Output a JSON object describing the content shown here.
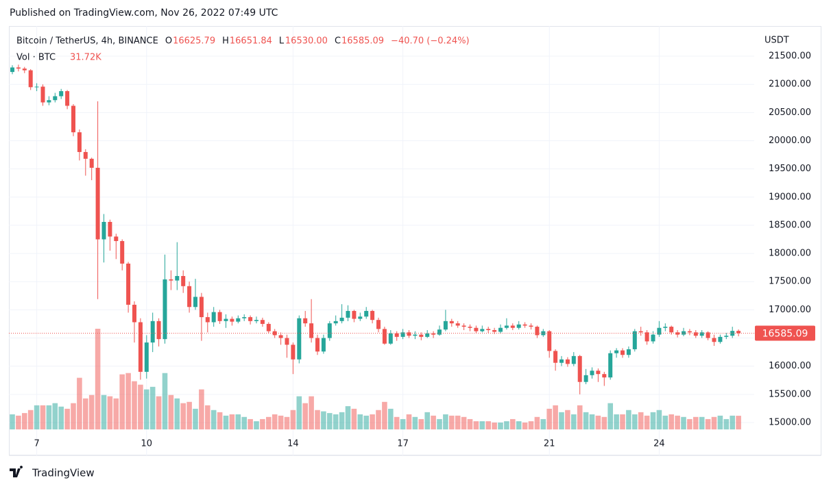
{
  "published": "Published on TradingView.com, Nov 26, 2022 07:49 UTC",
  "footer": "TradingView",
  "chart_data": {
    "type": "candlestick",
    "title": "Bitcoin / TetherUS, 4h, BINANCE",
    "ohlc_legend": [
      {
        "key": "O",
        "text": "16625.79"
      },
      {
        "key": "H",
        "text": "16651.84"
      },
      {
        "key": "L",
        "text": "16530.00"
      },
      {
        "key": "C",
        "text": "16585.09"
      }
    ],
    "change": "−40.70 (−0.24%)",
    "volume_legend": {
      "name": "Vol · BTC",
      "text": "31.72K"
    },
    "y_axis_label": "USDT",
    "up_color": "#26a69a",
    "down_color": "#ef5350",
    "grid": true,
    "categories": [
      null,
      null,
      null,
      null,
      "7",
      null,
      null,
      null,
      null,
      null,
      null,
      null,
      null,
      null,
      null,
      null,
      null,
      null,
      null,
      null,
      null,
      null,
      "10",
      null,
      null,
      null,
      null,
      null,
      null,
      null,
      null,
      null,
      null,
      null,
      null,
      null,
      null,
      null,
      null,
      null,
      null,
      null,
      null,
      null,
      null,
      null,
      "14",
      null,
      null,
      null,
      null,
      null,
      null,
      null,
      null,
      null,
      null,
      null,
      null,
      null,
      null,
      null,
      null,
      null,
      "17",
      null,
      null,
      null,
      null,
      null,
      null,
      null,
      null,
      null,
      null,
      null,
      null,
      null,
      null,
      null,
      null,
      null,
      null,
      null,
      null,
      null,
      null,
      null,
      "21",
      null,
      null,
      null,
      null,
      null,
      null,
      null,
      null,
      null,
      null,
      null,
      null,
      null,
      null,
      null,
      null,
      null,
      "24",
      null,
      null,
      null,
      null,
      null,
      null,
      null,
      null,
      null,
      null,
      null,
      null,
      null
    ],
    "open": [
      21220,
      21300,
      21280,
      21250,
      20950,
      20960,
      20680,
      20720,
      20790,
      20880,
      20620,
      20150,
      19800,
      19680,
      19520,
      18250,
      18560,
      18300,
      18220,
      17820,
      17090,
      16780,
      15900,
      16420,
      16800,
      16480,
      17540,
      17520,
      17600,
      17420,
      17050,
      17230,
      16870,
      16780,
      16960,
      16800,
      16840,
      16790,
      16850,
      16870,
      16800,
      16820,
      16750,
      16620,
      16550,
      16500,
      16380,
      16120,
      16850,
      16760,
      16500,
      16260,
      16500,
      16760,
      16800,
      16860,
      16980,
      16840,
      16880,
      16980,
      16820,
      16660,
      16400,
      16580,
      16520,
      16600,
      16540,
      16560,
      16520,
      16580,
      16560,
      16650,
      16800,
      16760,
      16720,
      16700,
      16680,
      16620,
      16660,
      16640,
      16610,
      16680,
      16720,
      16680,
      16740,
      16720,
      16700,
      16550,
      16620,
      16270,
      16060,
      16120,
      16040,
      16180,
      15720,
      15840,
      15920,
      15860,
      15800,
      16230,
      16280,
      16200,
      16300,
      16620,
      16600,
      16440,
      16560,
      16680,
      16700,
      16600,
      16560,
      16620,
      16600,
      16540,
      16600,
      16500,
      16430,
      16520,
      16540,
      16625.79
    ],
    "high": [
      21340,
      21350,
      21310,
      21270,
      21020,
      21000,
      20790,
      20850,
      20920,
      20900,
      20650,
      20200,
      19850,
      19700,
      20700,
      18700,
      18600,
      18350,
      18250,
      17850,
      17150,
      16850,
      16550,
      16950,
      16850,
      17980,
      17700,
      18200,
      17700,
      17500,
      17550,
      17300,
      16950,
      17050,
      17000,
      16920,
      16880,
      16900,
      16920,
      16900,
      16880,
      16860,
      16780,
      16660,
      16600,
      16560,
      16420,
      16900,
      16980,
      17190,
      16560,
      16560,
      16800,
      16900,
      17100,
      17080,
      17000,
      16950,
      17050,
      17000,
      16860,
      16700,
      16640,
      16620,
      16660,
      16640,
      16620,
      16600,
      16640,
      16620,
      16720,
      17000,
      16840,
      16800,
      16760,
      16740,
      16720,
      16720,
      16700,
      16680,
      16740,
      16850,
      16760,
      16800,
      16780,
      16760,
      16720,
      16660,
      16640,
      16300,
      16180,
      16160,
      16250,
      16200,
      15950,
      15980,
      15960,
      15900,
      16280,
      16320,
      16320,
      16350,
      16660,
      16700,
      16640,
      16620,
      16800,
      16760,
      16720,
      16640,
      16680,
      16660,
      16640,
      16640,
      16620,
      16560,
      16560,
      16590,
      16700,
      16651.84
    ],
    "low": [
      21180,
      21230,
      21200,
      20900,
      20880,
      20620,
      20630,
      20680,
      20740,
      20560,
      20080,
      19650,
      19380,
      19300,
      17190,
      17840,
      18050,
      17900,
      17700,
      16950,
      16420,
      15760,
      15780,
      16250,
      16350,
      16400,
      17350,
      17350,
      17300,
      16950,
      17000,
      16450,
      16600,
      16700,
      16750,
      16680,
      16720,
      16760,
      16800,
      16740,
      16760,
      16700,
      16580,
      16500,
      16380,
      16150,
      15860,
      16050,
      16700,
      16420,
      16200,
      16220,
      16450,
      16720,
      16760,
      16800,
      16780,
      16800,
      16840,
      16760,
      16600,
      16380,
      16380,
      16450,
      16480,
      16500,
      16480,
      16460,
      16500,
      16500,
      16540,
      16620,
      16700,
      16680,
      16640,
      16620,
      16580,
      16600,
      16590,
      16570,
      16580,
      16650,
      16640,
      16650,
      16680,
      16650,
      16500,
      16520,
      16150,
      15920,
      16000,
      15990,
      16000,
      15500,
      15680,
      15780,
      15720,
      15650,
      15760,
      16150,
      16150,
      16150,
      16260,
      16540,
      16380,
      16400,
      16520,
      16620,
      16560,
      16510,
      16530,
      16550,
      16500,
      16500,
      16460,
      16360,
      16400,
      16480,
      16500,
      16530
    ],
    "close": [
      21300,
      21280,
      21250,
      20950,
      20960,
      20680,
      20720,
      20790,
      20880,
      20620,
      20150,
      19800,
      19680,
      19520,
      18250,
      18560,
      18300,
      18220,
      17820,
      17090,
      16780,
      15900,
      16420,
      16800,
      16480,
      17540,
      17520,
      17600,
      17420,
      17050,
      17230,
      16870,
      16780,
      16960,
      16800,
      16840,
      16790,
      16850,
      16870,
      16800,
      16820,
      16750,
      16620,
      16550,
      16500,
      16380,
      16120,
      16850,
      16760,
      16500,
      16260,
      16500,
      16760,
      16800,
      16860,
      16980,
      16840,
      16880,
      16980,
      16820,
      16660,
      16400,
      16580,
      16520,
      16600,
      16540,
      16560,
      16520,
      16580,
      16560,
      16650,
      16800,
      16760,
      16720,
      16700,
      16680,
      16620,
      16660,
      16640,
      16610,
      16680,
      16720,
      16680,
      16740,
      16720,
      16700,
      16550,
      16620,
      16270,
      16060,
      16120,
      16040,
      16180,
      15720,
      15840,
      15920,
      15860,
      15800,
      16230,
      16280,
      16200,
      16300,
      16620,
      16600,
      16440,
      16560,
      16680,
      16700,
      16600,
      16560,
      16620,
      16600,
      16540,
      16600,
      16500,
      16430,
      16520,
      16540,
      16625.79,
      16585.09
    ],
    "volume": [
      35,
      32,
      38,
      45,
      56,
      56,
      56,
      61,
      53,
      48,
      61,
      120,
      72,
      80,
      234,
      80,
      77,
      72,
      128,
      131,
      112,
      104,
      93,
      99,
      77,
      131,
      80,
      72,
      61,
      64,
      48,
      93,
      56,
      45,
      40,
      32,
      35,
      35,
      29,
      24,
      19,
      24,
      29,
      35,
      32,
      29,
      45,
      77,
      61,
      77,
      45,
      42,
      38,
      35,
      40,
      54,
      48,
      35,
      32,
      35,
      45,
      64,
      48,
      29,
      24,
      35,
      29,
      24,
      40,
      32,
      24,
      35,
      32,
      32,
      29,
      24,
      19,
      19,
      19,
      16,
      16,
      19,
      24,
      19,
      16,
      19,
      29,
      24,
      48,
      56,
      40,
      45,
      35,
      56,
      40,
      35,
      32,
      29,
      61,
      35,
      35,
      45,
      35,
      40,
      32,
      40,
      45,
      32,
      35,
      32,
      29,
      24,
      29,
      29,
      24,
      29,
      32,
      24,
      32,
      31.72
    ],
    "ylim": [
      14878,
      22011
    ],
    "yticks": [
      {
        "value": 15000,
        "label": "15000.00"
      },
      {
        "value": 15500,
        "label": "15500.00"
      },
      {
        "value": 16000,
        "label": "16000.00"
      },
      {
        "value": 16500,
        "label": "16500.00"
      },
      {
        "value": 17000,
        "label": "17000.00"
      },
      {
        "value": 17500,
        "label": "17500.00"
      },
      {
        "value": 18000,
        "label": "18000.00"
      },
      {
        "value": 18500,
        "label": "18500.00"
      },
      {
        "value": 19000,
        "label": "19000.00"
      },
      {
        "value": 19500,
        "label": "19500.00"
      },
      {
        "value": 20000,
        "label": "20000.00"
      },
      {
        "value": 20500,
        "label": "20500.00"
      },
      {
        "value": 21000,
        "label": "21000.00"
      },
      {
        "value": 21500,
        "label": "21500.00"
      }
    ]
  }
}
